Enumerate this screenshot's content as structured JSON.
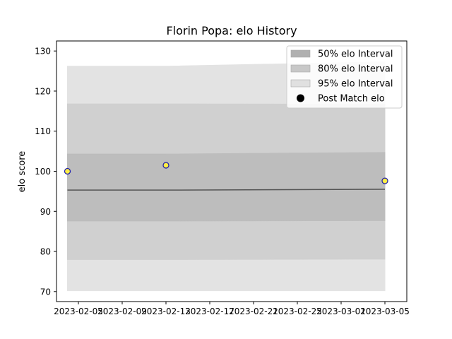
{
  "chart_data": {
    "type": "area",
    "title": "Florin Popa: elo History",
    "xlabel": "",
    "ylabel": "elo score",
    "x_dates": [
      "2023-02-04",
      "2023-02-13",
      "2023-03-05"
    ],
    "xlim": [
      "2023-02-03",
      "2023-03-07"
    ],
    "ylim": [
      67.5,
      132.5
    ],
    "x_ticks": [
      "2023-02-05",
      "2023-02-09",
      "2023-02-13",
      "2023-02-17",
      "2023-02-21",
      "2023-02-25",
      "2023-03-01",
      "2023-03-05"
    ],
    "y_ticks": [
      70,
      80,
      90,
      100,
      110,
      120,
      130
    ],
    "mean_line": [
      95.3,
      95.3,
      95.5
    ],
    "bands": [
      {
        "name": "95% elo Interval",
        "color": "#e3e3e3",
        "lower": [
          70.2,
          70.2,
          70.2
        ],
        "upper": [
          126.2,
          126.2,
          127.3
        ]
      },
      {
        "name": "80% elo Interval",
        "color": "#d0d0d0",
        "lower": [
          78.0,
          78.0,
          78.1
        ],
        "upper": [
          116.8,
          116.8,
          116.7
        ]
      },
      {
        "name": "50% elo Interval",
        "color": "#bdbdbd",
        "lower": [
          87.6,
          87.6,
          87.7
        ],
        "upper": [
          104.3,
          104.3,
          104.7
        ]
      }
    ],
    "points": {
      "name": "Post Match elo",
      "x": [
        "2023-02-04",
        "2023-02-13",
        "2023-03-05"
      ],
      "y": [
        100.0,
        101.5,
        97.6
      ],
      "fill": "#ffee44",
      "stroke": "#1a1aa8"
    },
    "legend": {
      "placement": "top-right",
      "entries": [
        {
          "label": "50% elo Interval",
          "color": "#b0b0b0",
          "kind": "patch"
        },
        {
          "label": "80% elo Interval",
          "color": "#c8c8c8",
          "kind": "patch"
        },
        {
          "label": "95% elo Interval",
          "color": "#e0e0e0",
          "kind": "patch"
        },
        {
          "label": "Post Match elo",
          "color": "#000000",
          "kind": "marker"
        }
      ]
    },
    "grid": false
  }
}
